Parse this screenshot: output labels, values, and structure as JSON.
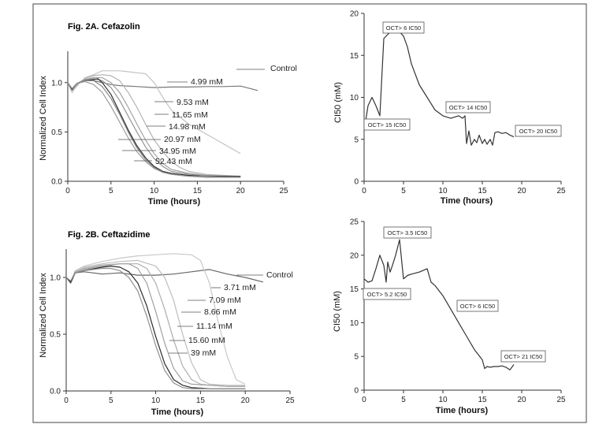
{
  "chart_data": [
    {
      "id": "A",
      "type": "line",
      "title": "Fig. 2A. Cefazolin",
      "xlabel": "Time (hours)",
      "ylabel": "Normalized Cell Index",
      "xlim": [
        0,
        25
      ],
      "ylim": [
        0,
        1.25
      ],
      "xticks": [
        "0",
        "5",
        "10",
        "15",
        "20",
        "25"
      ],
      "yticks": [
        "0.0",
        "0.5",
        "1.0"
      ],
      "series": [
        {
          "name": "Control",
          "color": "#777777",
          "x": [
            0,
            0.5,
            1,
            1.5,
            2,
            3,
            4,
            5,
            6,
            8,
            10,
            12,
            14,
            16,
            18,
            20,
            22
          ],
          "y": [
            1,
            0.94,
            0.97,
            1.01,
            1.02,
            1.02,
            1.0,
            0.98,
            0.97,
            0.96,
            0.95,
            0.955,
            0.955,
            0.96,
            0.96,
            0.965,
            0.92
          ]
        },
        {
          "name": "4.99 mM",
          "color": "#c2c2c2",
          "x": [
            0,
            0.5,
            1,
            2,
            3,
            4,
            5,
            6,
            7,
            8,
            9,
            10,
            11,
            12,
            14,
            16,
            18,
            20
          ],
          "y": [
            1,
            0.9,
            0.96,
            1.05,
            1.08,
            1.12,
            1.12,
            1.12,
            1.11,
            1.1,
            1.09,
            1.0,
            0.85,
            0.72,
            0.58,
            0.48,
            0.38,
            0.28
          ]
        },
        {
          "name": "9.53 mM",
          "color": "#b3b3b3",
          "x": [
            0,
            0.5,
            1,
            2,
            3,
            4,
            5,
            6,
            7,
            8,
            9,
            10,
            11,
            12,
            13,
            14,
            16,
            18,
            20
          ],
          "y": [
            1,
            0.92,
            0.98,
            1.04,
            1.07,
            1.08,
            1.07,
            1.02,
            0.9,
            0.75,
            0.58,
            0.42,
            0.3,
            0.2,
            0.14,
            0.1,
            0.07,
            0.06,
            0.05
          ]
        },
        {
          "name": "11.65 mM",
          "color": "#a3a3a3",
          "x": [
            0,
            0.5,
            1,
            2,
            3,
            4,
            5,
            6,
            7,
            8,
            9,
            10,
            11,
            12,
            14,
            16,
            18,
            20
          ],
          "y": [
            1,
            0.92,
            0.98,
            1.03,
            1.05,
            1.05,
            1.0,
            0.9,
            0.75,
            0.58,
            0.42,
            0.28,
            0.18,
            0.12,
            0.08,
            0.06,
            0.05,
            0.05
          ]
        },
        {
          "name": "14.98 mM",
          "color": "#959595",
          "x": [
            0,
            0.5,
            1,
            2,
            3,
            4,
            5,
            6,
            7,
            8,
            9,
            10,
            11,
            12,
            14,
            16,
            18,
            20
          ],
          "y": [
            1,
            0.93,
            0.99,
            1.03,
            1.04,
            1.02,
            0.95,
            0.82,
            0.66,
            0.5,
            0.35,
            0.23,
            0.15,
            0.1,
            0.07,
            0.06,
            0.05,
            0.05
          ]
        },
        {
          "name": "20.97 mM",
          "color": "#2e2e2e",
          "x": [
            0,
            0.5,
            1,
            2,
            3,
            3.5,
            4,
            5,
            6,
            7,
            8,
            9,
            10,
            11,
            12,
            14,
            16,
            18,
            20
          ],
          "y": [
            1,
            0.93,
            0.99,
            1.02,
            1.03,
            1.04,
            1.0,
            0.88,
            0.7,
            0.52,
            0.36,
            0.24,
            0.15,
            0.1,
            0.08,
            0.06,
            0.05,
            0.05,
            0.05
          ]
        },
        {
          "name": "34.95 mM",
          "color": "#848484",
          "x": [
            0,
            0.5,
            1,
            2,
            3,
            4,
            5,
            6,
            7,
            8,
            9,
            10,
            11,
            12,
            14,
            16,
            18,
            20
          ],
          "y": [
            1,
            0.94,
            0.99,
            1.02,
            1.02,
            0.96,
            0.84,
            0.68,
            0.5,
            0.34,
            0.22,
            0.14,
            0.09,
            0.07,
            0.05,
            0.05,
            0.04,
            0.04
          ]
        },
        {
          "name": "52.43 mM",
          "color": "#9c9c9c",
          "x": [
            0,
            0.5,
            1,
            2,
            3,
            4,
            5,
            6,
            7,
            8,
            9,
            10,
            11,
            12,
            14,
            16,
            18,
            20
          ],
          "y": [
            1,
            0.94,
            0.99,
            1.01,
            0.98,
            0.9,
            0.76,
            0.6,
            0.44,
            0.3,
            0.2,
            0.13,
            0.09,
            0.07,
            0.05,
            0.04,
            0.04,
            0.04
          ]
        }
      ],
      "labels": [
        "Control",
        "4.99 mM",
        "9.53 mM",
        "11.65 mM",
        "14.98 mM",
        "20.97 mM",
        "34.95 mM",
        "52.43 mM"
      ]
    },
    {
      "id": "A-IC50",
      "type": "line",
      "title": "",
      "xlabel": "Time (hours)",
      "ylabel": "CI50 (mM)",
      "xlim": [
        0,
        25
      ],
      "ylim": [
        0,
        20
      ],
      "xticks": [
        "0",
        "5",
        "10",
        "15",
        "20",
        "25"
      ],
      "yticks": [
        "0",
        "5",
        "10",
        "15",
        "20"
      ],
      "series": [
        {
          "name": "IC50",
          "color": "#333333",
          "x": [
            0.2,
            0.5,
            1,
            1.5,
            2,
            2.5,
            3,
            3.5,
            4,
            4.5,
            5,
            5.5,
            6,
            7,
            8,
            9,
            10,
            11,
            12,
            12.5,
            12.8,
            13,
            13.3,
            13.6,
            14,
            14.3,
            14.6,
            15,
            15.3,
            15.6,
            16,
            16.3,
            16.6,
            17,
            17.5,
            18,
            18.5,
            19
          ],
          "y": [
            7.2,
            9,
            10,
            9,
            7.8,
            17.0,
            17.5,
            17.9,
            18.0,
            17.8,
            17.3,
            16.0,
            14.0,
            11.5,
            10.0,
            8.5,
            7.8,
            7.5,
            7.8,
            7.5,
            7.8,
            4.5,
            6.0,
            4.3,
            5.0,
            4.6,
            5.5,
            4.5,
            5.0,
            4.4,
            5.0,
            4.3,
            5.8,
            5.9,
            5.7,
            5.8,
            5.5,
            5.3
          ]
        }
      ],
      "annotations": [
        "OCT> 6 IC50",
        "OCT> 15 IC50",
        "OCT> 14 IC50",
        "OCT> 20 IC50"
      ]
    },
    {
      "id": "B",
      "type": "line",
      "title": "Fig. 2B. Ceftazidime",
      "xlabel": "Time (hours)",
      "ylabel": "Normalized Cell Index",
      "xlim": [
        0,
        25
      ],
      "ylim": [
        0,
        1.25
      ],
      "xticks": [
        "0",
        "5",
        "10",
        "15",
        "20",
        "25"
      ],
      "yticks": [
        "0.0",
        "0.5",
        "1.0"
      ],
      "series": [
        {
          "name": "Control",
          "color": "#666666",
          "x": [
            0,
            0.5,
            1,
            2,
            3,
            4,
            6,
            8,
            10,
            12,
            14,
            16,
            18,
            20,
            22
          ],
          "y": [
            1,
            0.95,
            1.04,
            1.05,
            1.04,
            1.03,
            1.04,
            1.02,
            1.02,
            1.03,
            1.05,
            1.07,
            1.03,
            1.0,
            0.96
          ]
        },
        {
          "name": "3.71 mM",
          "color": "#c8c8c8",
          "x": [
            0,
            0.5,
            1,
            2,
            4,
            6,
            8,
            10,
            12,
            14,
            15,
            16,
            17,
            18,
            19,
            20
          ],
          "y": [
            1,
            0.96,
            1.06,
            1.1,
            1.14,
            1.17,
            1.19,
            1.2,
            1.21,
            1.2,
            1.15,
            0.95,
            0.6,
            0.3,
            0.1,
            0.06
          ]
        },
        {
          "name": "7.09 mM",
          "color": "#bdbdbd",
          "x": [
            0,
            0.5,
            1,
            2,
            4,
            6,
            8,
            10,
            11,
            12,
            13,
            14,
            15,
            16,
            18,
            20
          ],
          "y": [
            1,
            0.96,
            1.05,
            1.09,
            1.12,
            1.14,
            1.15,
            1.1,
            1.0,
            0.8,
            0.5,
            0.25,
            0.1,
            0.06,
            0.05,
            0.05
          ]
        },
        {
          "name": "8.66 mM",
          "color": "#adadad",
          "x": [
            0,
            0.5,
            1,
            2,
            4,
            6,
            8,
            9,
            10,
            11,
            12,
            13,
            14,
            15,
            16,
            18,
            20
          ],
          "y": [
            1,
            0.96,
            1.05,
            1.08,
            1.11,
            1.12,
            1.12,
            1.08,
            0.95,
            0.72,
            0.45,
            0.22,
            0.1,
            0.06,
            0.05,
            0.04,
            0.04
          ]
        },
        {
          "name": "11.14 mM",
          "color": "#a0a0a0",
          "x": [
            0,
            0.5,
            1,
            2,
            4,
            6,
            7,
            8,
            9,
            10,
            11,
            12,
            13,
            14,
            16,
            18,
            20
          ],
          "y": [
            1,
            0.96,
            1.04,
            1.07,
            1.1,
            1.12,
            1.12,
            1.08,
            0.95,
            0.7,
            0.42,
            0.2,
            0.09,
            0.06,
            0.05,
            0.04,
            0.04
          ]
        },
        {
          "name": "15.60 mM",
          "color": "#2a2a2a",
          "x": [
            0,
            0.5,
            1,
            2,
            4,
            5,
            6,
            7,
            8,
            9,
            10,
            11,
            12,
            13,
            14,
            16,
            18,
            20
          ],
          "y": [
            1,
            0.96,
            1.04,
            1.06,
            1.09,
            1.1,
            1.09,
            1.05,
            0.95,
            0.75,
            0.48,
            0.24,
            0.1,
            0.05,
            0.03,
            0.02,
            0.02,
            0.02
          ]
        },
        {
          "name": "39 mM",
          "color": "#8e8e8e",
          "x": [
            0,
            0.5,
            1,
            2,
            4,
            5,
            6,
            7,
            8,
            9,
            10,
            11,
            12,
            13,
            14,
            16,
            18,
            20
          ],
          "y": [
            1,
            0.97,
            1.04,
            1.06,
            1.08,
            1.08,
            1.06,
            1.0,
            0.88,
            0.66,
            0.4,
            0.18,
            0.07,
            0.03,
            0.02,
            0.02,
            0.02,
            0.02
          ]
        }
      ],
      "labels": [
        "Control",
        "3.71 mM",
        "7.09 mM",
        "8.66 mM",
        "11.14 mM",
        "15.60 mM",
        "39 mM"
      ]
    },
    {
      "id": "B-IC50",
      "type": "line",
      "title": "",
      "xlabel": "Time (hours)",
      "ylabel": "CI50 (mM)",
      "xlim": [
        0,
        25
      ],
      "ylim": [
        0,
        25
      ],
      "xticks": [
        "0",
        "5",
        "10",
        "15",
        "20",
        "25"
      ],
      "yticks": [
        "0",
        "5",
        "10",
        "15",
        "20",
        "25"
      ],
      "series": [
        {
          "name": "IC50",
          "color": "#333333",
          "x": [
            0,
            0.5,
            1,
            1.5,
            2,
            2.5,
            2.8,
            3,
            3.3,
            3.6,
            4,
            4.5,
            5,
            5.5,
            6,
            7,
            8,
            8.5,
            9,
            10,
            11,
            12,
            13,
            14,
            15,
            15.3,
            15.6,
            16,
            16.5,
            17,
            17.5,
            18,
            18.5,
            19
          ],
          "y": [
            16.5,
            16,
            16.2,
            18,
            20,
            18.5,
            16,
            19,
            17.5,
            18.5,
            20,
            22.3,
            16.5,
            17,
            17.2,
            17.5,
            18,
            16,
            15.5,
            14,
            12,
            10,
            8,
            6,
            4.5,
            3.2,
            3.5,
            3.4,
            3.5,
            3.5,
            3.6,
            3.4,
            3.0,
            3.8
          ]
        }
      ],
      "annotations": [
        "OCT> 3.5 IC50",
        "OCT> 5.2 IC50",
        "OCT> 6 IC50",
        "OCT> 21 IC50"
      ]
    }
  ]
}
